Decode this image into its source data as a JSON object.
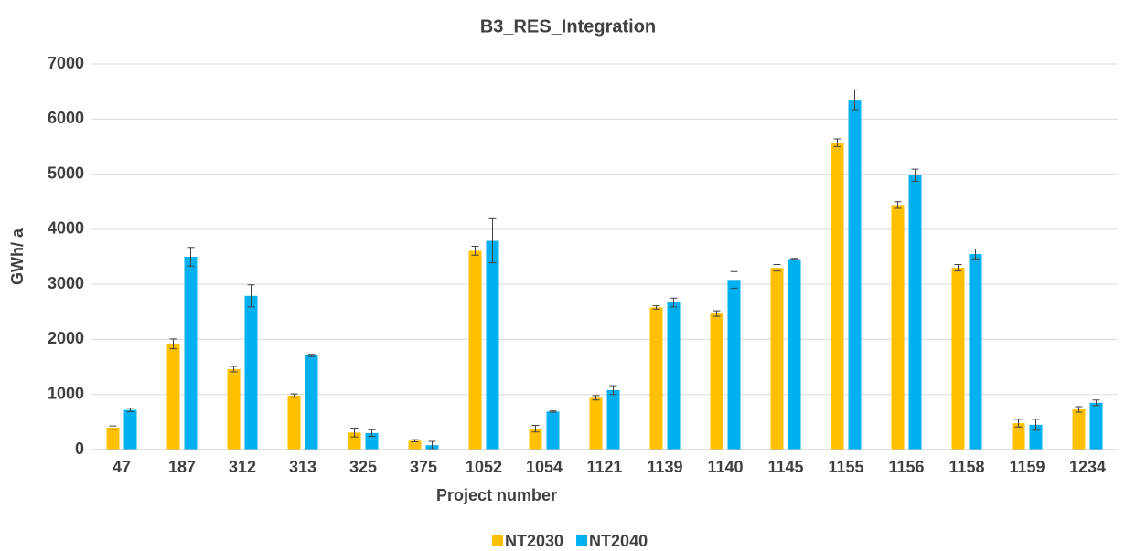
{
  "chart_data": {
    "type": "bar",
    "title": "B3_RES_Integration",
    "x_label": "Project number",
    "y_label": "GWh/ a",
    "categories": [
      "47",
      "187",
      "312",
      "313",
      "325",
      "375",
      "1052",
      "1054",
      "1121",
      "1139",
      "1140",
      "1145",
      "1155",
      "1156",
      "1158",
      "1159",
      "1234"
    ],
    "series": [
      {
        "name": "NT2030",
        "color": "#ffc000",
        "values": [
          400,
          1920,
          1460,
          980,
          310,
          160,
          3610,
          380,
          940,
          2580,
          2470,
          3300,
          5570,
          4440,
          3300,
          480,
          730
        ],
        "errors": [
          30,
          90,
          50,
          30,
          80,
          20,
          80,
          60,
          40,
          30,
          50,
          60,
          70,
          60,
          60,
          70,
          50
        ]
      },
      {
        "name": "NT2040",
        "color": "#00b0f0",
        "values": [
          720,
          3500,
          2790,
          1710,
          300,
          80,
          3790,
          690,
          1080,
          2670,
          3080,
          3460,
          6350,
          4980,
          3550,
          450,
          850
        ],
        "errors": [
          30,
          170,
          200,
          20,
          60,
          70,
          400,
          10,
          80,
          80,
          150,
          10,
          180,
          110,
          90,
          100,
          50
        ]
      }
    ],
    "ylim": [
      0,
      7000
    ],
    "yticks": [
      0,
      1000,
      2000,
      3000,
      4000,
      5000,
      6000,
      7000
    ],
    "grid": true,
    "legend": "bottom"
  }
}
